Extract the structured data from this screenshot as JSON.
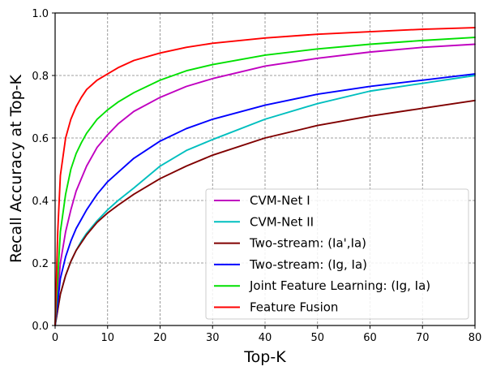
{
  "chart_data": {
    "type": "line",
    "title": "",
    "xlabel": "Top-K",
    "ylabel": "Recall Accuracy at Top-K",
    "xlim": [
      0,
      80
    ],
    "ylim": [
      0,
      1.0
    ],
    "x_ticks": [
      0,
      10,
      20,
      30,
      40,
      50,
      60,
      70,
      80
    ],
    "y_ticks": [
      0.0,
      0.2,
      0.4,
      0.6,
      0.8,
      1.0
    ],
    "x_tick_labels": [
      "0",
      "10",
      "20",
      "30",
      "40",
      "50",
      "60",
      "70",
      "80"
    ],
    "y_tick_labels": [
      "0.0",
      "0.2",
      "0.4",
      "0.6",
      "0.8",
      "1.0"
    ],
    "grid": true,
    "legend_position": "lower-right",
    "series": [
      {
        "name": "CVM-Net I",
        "color": "#c000c0",
        "x": [
          0,
          1,
          2,
          3,
          4,
          5,
          6,
          8,
          10,
          12,
          15,
          20,
          25,
          30,
          40,
          50,
          60,
          70,
          80
        ],
        "y": [
          0,
          0.2,
          0.3,
          0.37,
          0.43,
          0.47,
          0.51,
          0.57,
          0.61,
          0.645,
          0.685,
          0.73,
          0.765,
          0.79,
          0.83,
          0.855,
          0.875,
          0.89,
          0.9
        ]
      },
      {
        "name": "CVM-Net II",
        "color": "#00bfbf",
        "x": [
          0,
          1,
          2,
          3,
          4,
          5,
          6,
          8,
          10,
          12,
          15,
          20,
          25,
          30,
          40,
          50,
          60,
          70,
          80
        ],
        "y": [
          0,
          0.1,
          0.16,
          0.205,
          0.24,
          0.27,
          0.295,
          0.335,
          0.37,
          0.4,
          0.44,
          0.51,
          0.56,
          0.595,
          0.66,
          0.71,
          0.75,
          0.775,
          0.8
        ]
      },
      {
        "name": "Two-stream: (Ia',Ia)",
        "color": "#800000",
        "x": [
          0,
          1,
          2,
          3,
          4,
          5,
          6,
          8,
          10,
          12,
          15,
          20,
          25,
          30,
          40,
          50,
          60,
          70,
          80
        ],
        "y": [
          0,
          0.1,
          0.16,
          0.205,
          0.24,
          0.265,
          0.29,
          0.33,
          0.36,
          0.385,
          0.42,
          0.47,
          0.51,
          0.545,
          0.6,
          0.64,
          0.67,
          0.695,
          0.72
        ]
      },
      {
        "name": "Two-stream: (Ig, Ia)",
        "color": "#0000ff",
        "x": [
          0,
          1,
          2,
          3,
          4,
          5,
          6,
          8,
          10,
          12,
          15,
          20,
          25,
          30,
          40,
          50,
          60,
          70,
          80
        ],
        "y": [
          0,
          0.15,
          0.22,
          0.27,
          0.31,
          0.34,
          0.37,
          0.42,
          0.46,
          0.49,
          0.535,
          0.59,
          0.63,
          0.66,
          0.705,
          0.74,
          0.765,
          0.785,
          0.805
        ]
      },
      {
        "name": "Joint Feature Learning: (Ig, Ia)",
        "color": "#00e000",
        "x": [
          0,
          1,
          2,
          3,
          4,
          5,
          6,
          8,
          10,
          12,
          15,
          20,
          25,
          30,
          40,
          50,
          60,
          70,
          80
        ],
        "y": [
          0,
          0.3,
          0.42,
          0.5,
          0.55,
          0.585,
          0.615,
          0.66,
          0.69,
          0.715,
          0.745,
          0.785,
          0.815,
          0.835,
          0.865,
          0.885,
          0.9,
          0.912,
          0.922
        ]
      },
      {
        "name": "Feature Fusion",
        "color": "#ff0000",
        "x": [
          0,
          0.5,
          1,
          2,
          3,
          4,
          5,
          6,
          8,
          10,
          12,
          15,
          20,
          25,
          30,
          40,
          50,
          60,
          70,
          80
        ],
        "y": [
          0,
          0.3,
          0.48,
          0.6,
          0.66,
          0.7,
          0.73,
          0.755,
          0.785,
          0.805,
          0.825,
          0.848,
          0.872,
          0.89,
          0.903,
          0.92,
          0.932,
          0.94,
          0.948,
          0.953
        ]
      }
    ]
  }
}
